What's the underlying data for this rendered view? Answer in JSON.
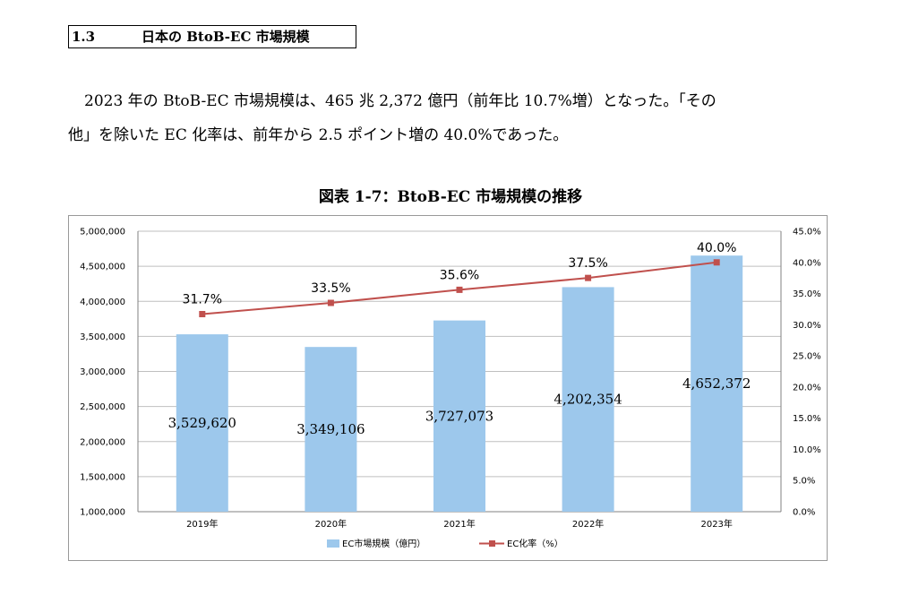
{
  "heading": {
    "number": "1.3",
    "title": "日本の BtoB-EC 市場規模"
  },
  "body": {
    "line1": "2023 年の BtoB-EC 市場規模は、465 兆 2,372 億円（前年比 10.7%増）となった。「その",
    "line2": "他」を除いた EC 化率は、前年から 2.5 ポイント増の 40.0%であった。"
  },
  "figure_title": "図表 1-7：BtoB-EC 市場規模の推移",
  "chart_data": {
    "type": "bar",
    "categories": [
      "2019年",
      "2020年",
      "2021年",
      "2022年",
      "2023年"
    ],
    "series": [
      {
        "name": "EC市場規模（億円）",
        "type": "bar",
        "axis": "left",
        "values": [
          3529620,
          3349106,
          3727073,
          4202354,
          4652372
        ],
        "labels": [
          "3,529,620",
          "3,349,106",
          "3,727,073",
          "4,202,354",
          "4,652,372"
        ],
        "color": "#9DC8EC"
      },
      {
        "name": "EC化率（%）",
        "type": "line",
        "axis": "right",
        "values": [
          31.7,
          33.5,
          35.6,
          37.5,
          40.0
        ],
        "labels": [
          "31.7%",
          "33.5%",
          "35.6%",
          "37.5%",
          "40.0%"
        ],
        "color": "#C0504D"
      }
    ],
    "y_left": {
      "range": [
        1000000,
        5000000
      ],
      "ticks": [
        "1,000,000",
        "1,500,000",
        "2,000,000",
        "2,500,000",
        "3,000,000",
        "3,500,000",
        "4,000,000",
        "4,500,000",
        "5,000,000"
      ]
    },
    "y_right": {
      "range": [
        0,
        45
      ],
      "ticks": [
        "0.0%",
        "5.0%",
        "10.0%",
        "15.0%",
        "20.0%",
        "25.0%",
        "30.0%",
        "35.0%",
        "40.0%",
        "45.0%"
      ]
    },
    "grid": true,
    "legend": "bottom"
  }
}
